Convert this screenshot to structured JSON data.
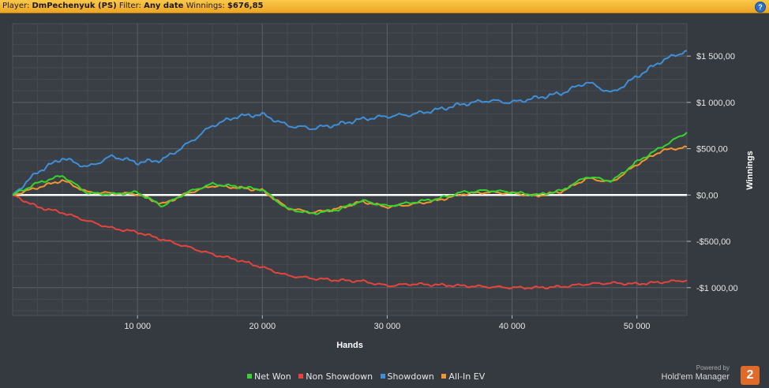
{
  "header": {
    "player_label": "Player:",
    "player_value": "DmPechenyuk (PS)",
    "filter_label": "Filter:",
    "filter_value": "Any date",
    "winnings_label": "Winnings:",
    "winnings_value": "$676,85",
    "help_icon": "question-mark-icon",
    "help_symbol": "?"
  },
  "chart_data": {
    "type": "line",
    "xlabel": "Hands",
    "ylabel": "Winnings",
    "xlim": [
      0,
      54000
    ],
    "ylim": [
      -1300,
      1850
    ],
    "x_ticks": [
      10000,
      20000,
      30000,
      40000,
      50000
    ],
    "x_tick_labels": [
      "10 000",
      "20 000",
      "30 000",
      "40 000",
      "50 000"
    ],
    "y_ticks": [
      1500,
      1000,
      500,
      0,
      -500,
      -1000
    ],
    "y_tick_labels": [
      "$1 500,00",
      "$1 000,00",
      "$500,00",
      "$0,00",
      "-$500,00",
      "-$1 000,00"
    ],
    "grid": true,
    "legend_position": "bottom",
    "x": [
      0,
      2000,
      4000,
      6000,
      8000,
      10000,
      12000,
      14000,
      16000,
      18000,
      20000,
      22000,
      24000,
      26000,
      28000,
      30000,
      32000,
      34000,
      36000,
      38000,
      40000,
      42000,
      44000,
      46000,
      48000,
      50000,
      52000,
      54000
    ],
    "series": [
      {
        "name": "Net Won",
        "color": "#35d42f",
        "values": [
          0,
          130,
          210,
          20,
          10,
          30,
          -120,
          30,
          120,
          90,
          60,
          -150,
          -200,
          -160,
          -60,
          -120,
          -80,
          -40,
          30,
          50,
          30,
          0,
          50,
          200,
          150,
          360,
          520,
          677
        ]
      },
      {
        "name": "Non Showdown",
        "color": "#e5443d",
        "values": [
          0,
          -130,
          -190,
          -280,
          -360,
          -400,
          -480,
          -560,
          -640,
          -700,
          -780,
          -870,
          -900,
          -920,
          -930,
          -980,
          -960,
          -970,
          -980,
          -990,
          -1000,
          -1000,
          -990,
          -960,
          -950,
          -960,
          -940,
          -920
        ]
      },
      {
        "name": "Showdown",
        "color": "#3f8fd8",
        "values": [
          0,
          250,
          400,
          300,
          420,
          350,
          380,
          550,
          750,
          850,
          870,
          750,
          720,
          760,
          820,
          850,
          870,
          920,
          980,
          1020,
          1000,
          1050,
          1100,
          1220,
          1100,
          1280,
          1450,
          1560
        ]
      },
      {
        "name": "All-In EV",
        "color": "#f39431",
        "values": [
          0,
          80,
          160,
          30,
          20,
          10,
          -100,
          20,
          100,
          80,
          50,
          -140,
          -190,
          -150,
          -70,
          -130,
          -100,
          -60,
          10,
          30,
          20,
          -10,
          40,
          180,
          140,
          330,
          480,
          520
        ]
      }
    ]
  },
  "branding": {
    "powered_by": "Powered by",
    "product": "Hold'em Manager",
    "logo_symbol": "2"
  }
}
